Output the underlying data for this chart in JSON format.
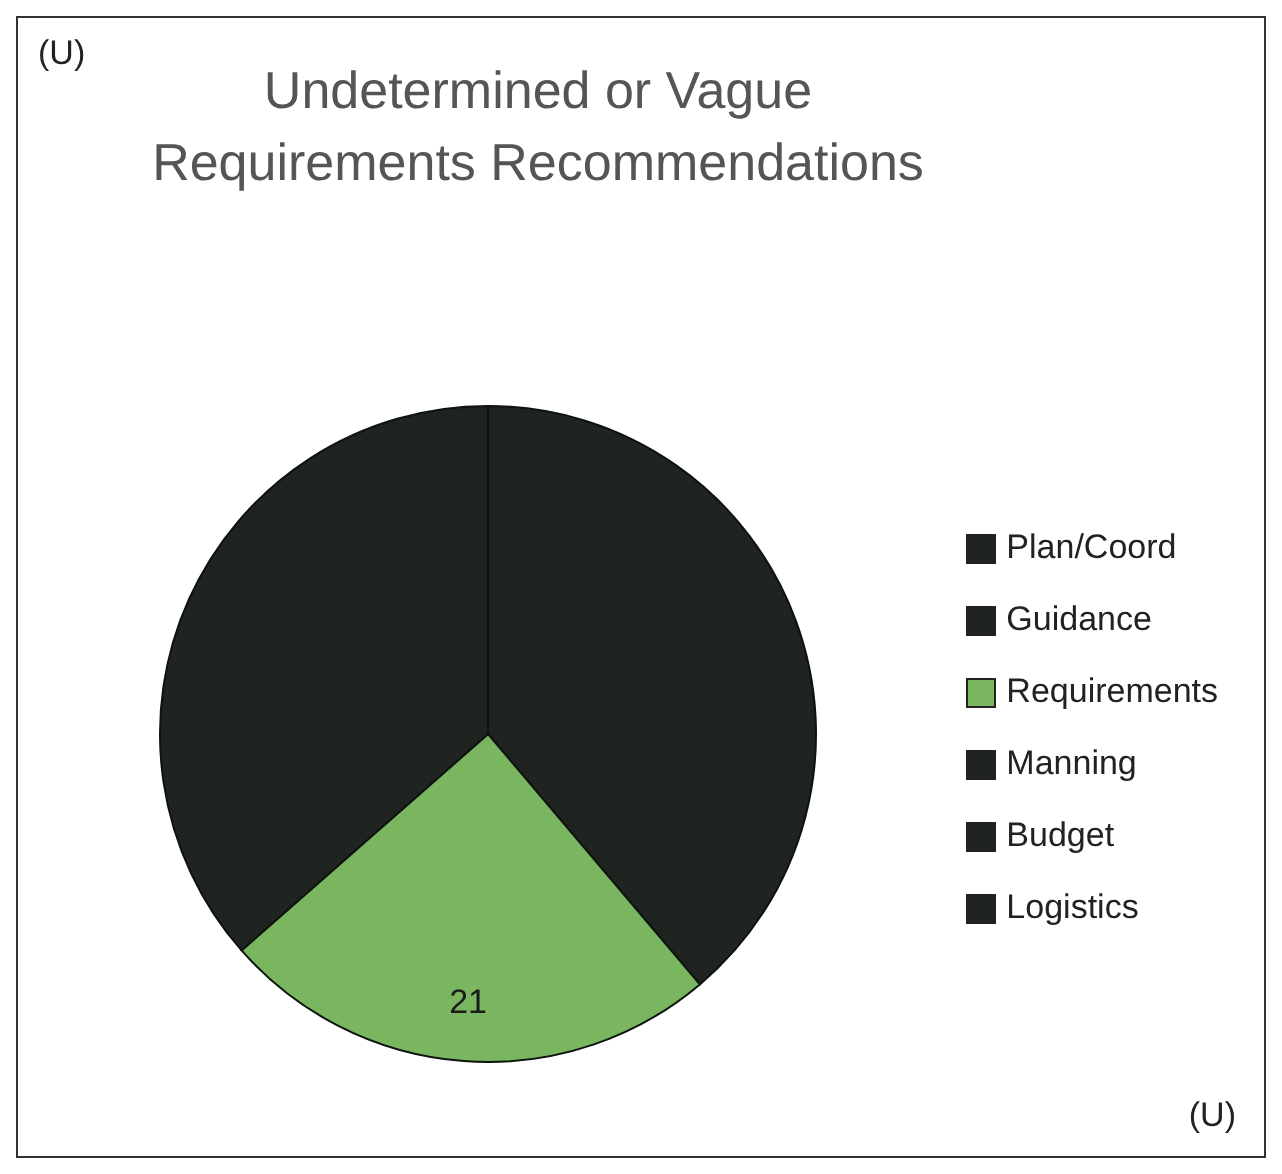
{
  "chart_data": {
    "type": "pie",
    "title": "Undetermined or Vague Requirements Recommendations",
    "categories": [
      "Plan/Coord",
      "Guidance",
      "Requirements",
      "Manning",
      "Budget",
      "Logistics"
    ],
    "values": [
      33,
      null,
      21,
      null,
      null,
      31
    ],
    "colors": [
      "#1f2421",
      "#1f2421",
      "#7ab660",
      "#1f2421",
      "#1f2421",
      "#1f2421"
    ],
    "value_labels": [
      null,
      null,
      "21",
      null,
      null,
      null
    ],
    "legend": "right",
    "annotations": [
      "(U)",
      "(U)"
    ]
  }
}
